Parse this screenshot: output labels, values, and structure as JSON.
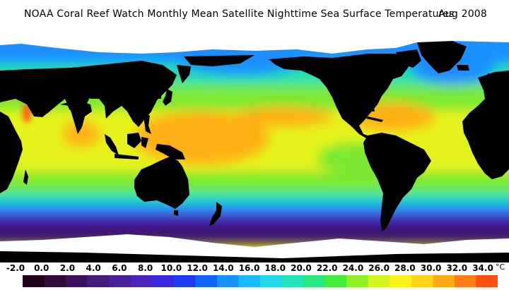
{
  "title": "NOAA Coral Reef Watch Monthly Mean Satellite Nighttime Sea Surface Temperatures",
  "date": "Aug 2008",
  "scale": {
    "unit": "°C",
    "tick_labels": [
      "-2.0",
      "0.0",
      "2.0",
      "4.0",
      "6.0",
      "8.0",
      "10.0",
      "12.0",
      "14.0",
      "16.0",
      "18.0",
      "20.0",
      "22.0",
      "24.0",
      "26.0",
      "28.0",
      "30.0",
      "32.0",
      "34.0"
    ],
    "colors": [
      "#24001f",
      "#310a3a",
      "#3d0f5e",
      "#461a7c",
      "#4b1f98",
      "#4b23bf",
      "#3b28e1",
      "#1e3cf5",
      "#1064ff",
      "#1691ff",
      "#1ab9ff",
      "#1fd6ea",
      "#22e4b8",
      "#2ae67e",
      "#44ea3c",
      "#8ef024",
      "#d2f51c",
      "#f9f318",
      "#ffd516",
      "#ffaa16",
      "#ff7c16",
      "#ff4e12"
    ]
  },
  "map_colors": {
    "land": "#000000",
    "ice": "#ffffff",
    "polar_ocean": "#3a1470",
    "cold_ocean": "#4a24c0",
    "cool_ocean": "#1a8fff",
    "mild_ocean": "#22e0b0",
    "warm_ocean": "#7ae832",
    "tropical_ocean": "#e6f21c",
    "hot_ocean": "#ffb018",
    "hotspot": "#ff5a16"
  }
}
